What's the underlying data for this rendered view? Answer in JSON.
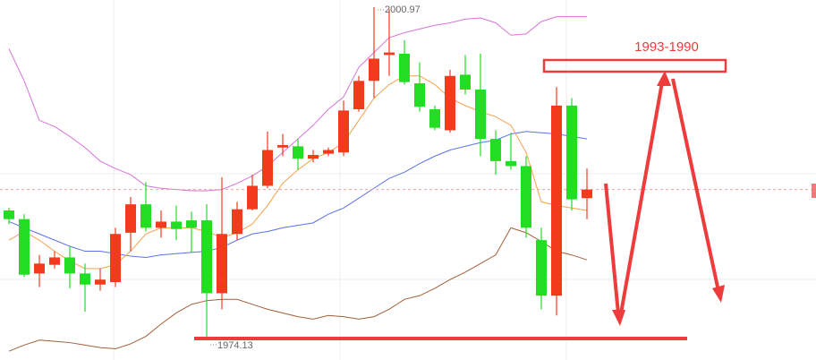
{
  "chart_data": {
    "type": "candlestick",
    "categories": [
      null,
      null,
      null,
      null,
      null,
      null,
      null,
      null,
      null,
      null,
      null,
      null,
      null,
      null,
      null,
      null,
      null,
      null,
      null,
      null,
      null,
      null,
      null,
      null,
      null,
      null,
      null,
      null,
      null,
      null,
      null,
      null,
      null,
      null,
      null,
      null,
      null,
      null,
      null
    ],
    "open": [
      1984.5,
      1983.8,
      1979.4,
      1980.1,
      1980.7,
      1979.4,
      1978.5,
      1978.7,
      1982.7,
      1985.0,
      1983.1,
      1983.6,
      1983.7,
      1983.7,
      1977.8,
      1982.6,
      1984.6,
      1986.5,
      1989.6,
      1989.7,
      1988.7,
      1989.1,
      1989.2,
      1992.7,
      1995.0,
      1997.1,
      1997.2,
      1994.8,
      1992.7,
      1991.0,
      1995.5,
      1994.3,
      1990.3,
      1988.5,
      1988.1,
      1982.1,
      1977.6,
      1993.0,
      1985.5
    ],
    "high": [
      1984.7,
      1984.2,
      1980.9,
      1981.2,
      1981.6,
      1980.2,
      1979.8,
      1983.1,
      1985.6,
      1986.8,
      1984.5,
      1984.9,
      1984.4,
      1985.0,
      1987.2,
      1985.2,
      1987.4,
      1990.9,
      1990.7,
      1990.3,
      1989.4,
      1989.6,
      1993.4,
      1995.4,
      2000.97,
      2000.8,
      1998.3,
      1996.5,
      1993.0,
      1995.9,
      1997.1,
      1997.2,
      1991.0,
      1990.8,
      1988.9,
      1983.1,
      1994.5,
      1993.6,
      1987.9
    ],
    "low": [
      1983.4,
      1979.1,
      1978.3,
      1979.8,
      1978.2,
      1976.3,
      1978.0,
      1978.3,
      1981.2,
      1982.8,
      1982.3,
      1982.1,
      1981.1,
      1974.13,
      1976.5,
      1982.1,
      1984.5,
      1986.3,
      1988.9,
      1987.8,
      1988.4,
      1988.9,
      1988.9,
      1992.5,
      1993.6,
      1995.4,
      1994.7,
      1992.5,
      1991.0,
      1990.8,
      1993.9,
      1988.9,
      1987.4,
      1987.8,
      1982.3,
      1976.5,
      1976.0,
      1984.5,
      1983.8
    ],
    "close": [
      1983.8,
      1979.3,
      1980.2,
      1980.7,
      1979.4,
      1978.5,
      1978.9,
      1982.6,
      1985.0,
      1983.1,
      1983.6,
      1983.0,
      1983.1,
      1977.8,
      1982.6,
      1984.6,
      1986.5,
      1989.4,
      1989.8,
      1988.7,
      1989.0,
      1989.4,
      1992.6,
      1995.0,
      1996.8,
      1997.3,
      1994.9,
      1992.9,
      1991.2,
      1995.4,
      1994.3,
      1990.3,
      1988.5,
      1988.1,
      1983.1,
      1977.6,
      1993.0,
      1985.4,
      1986.2
    ],
    "up_color": "#f23b1d",
    "down_color": "#22dd22",
    "series": [
      {
        "color": "#d873d8",
        "values": [
          1997.6,
          1995.0,
          1991.8,
          1991.3,
          1990.5,
          1989.6,
          1988.5,
          1987.9,
          1987.4,
          1986.5,
          1986.3,
          1986.2,
          1986.1,
          1986.1,
          1986.2,
          1986.7,
          1987.3,
          1988.1,
          1989.2,
          1990.3,
          1991.4,
          1992.7,
          1993.7,
          1996.1,
          1997.3,
          1998.5,
          1998.9,
          1999.2,
          1999.5,
          1999.7,
          2000.0,
          2000.1,
          1999.7,
          1998.7,
          1998.8,
          1999.8,
          2000.2,
          2000.2,
          2000.2
        ]
      },
      {
        "color": "#5d72e4",
        "values": [
          1983.6,
          1983.1,
          1982.6,
          1982.1,
          1981.6,
          1981.2,
          1981.2,
          1981.0,
          1980.8,
          1980.7,
          1980.9,
          1981.0,
          1981.1,
          1981.2,
          1981.5,
          1982.1,
          1982.6,
          1982.8,
          1983.1,
          1983.3,
          1983.5,
          1984.2,
          1984.7,
          1985.5,
          1986.3,
          1987.1,
          1987.6,
          1988.3,
          1988.9,
          1989.4,
          1989.7,
          1990.0,
          1990.2,
          1990.7,
          1990.9,
          1990.8,
          1990.7,
          1990.5,
          1990.3
        ]
      },
      {
        "color": "#a0603a",
        "values": [
          1973.1,
          1973.6,
          1974.0,
          1973.9,
          1973.8,
          1973.6,
          1973.4,
          1973.3,
          1973.7,
          1974.3,
          1975.3,
          1976.2,
          1976.9,
          1977.2,
          1977.3,
          1977.3,
          1976.9,
          1976.5,
          1976.2,
          1975.9,
          1975.7,
          1976.0,
          1975.9,
          1975.7,
          1975.9,
          1976.5,
          1977.3,
          1977.6,
          1978.2,
          1978.9,
          1979.5,
          1980.2,
          1980.9,
          1983.1,
          1982.7,
          1982.0,
          1981.2,
          1980.9,
          1980.5
        ]
      },
      {
        "color": "#f5a24e",
        "values": [
          1982.1,
          1982.8,
          1982.1,
          1981.2,
          1980.4,
          1979.8,
          1979.8,
          1980.1,
          1981.2,
          1982.6,
          1983.1,
          1983.1,
          1983.1,
          1982.8,
          1982.3,
          1982.7,
          1983.4,
          1984.9,
          1986.7,
          1987.8,
          1988.7,
          1989.2,
          1990.0,
          1991.8,
          1993.6,
          1994.7,
          1995.4,
          1995.4,
          1994.7,
          1993.6,
          1993.0,
          1992.5,
          1992.1,
          1991.4,
          1989.2,
          1985.2,
          1984.9,
          1984.7,
          1984.5
        ]
      }
    ],
    "ylim": [
      1972.39,
      2001.55
    ],
    "annotation": "1993-1990"
  }
}
